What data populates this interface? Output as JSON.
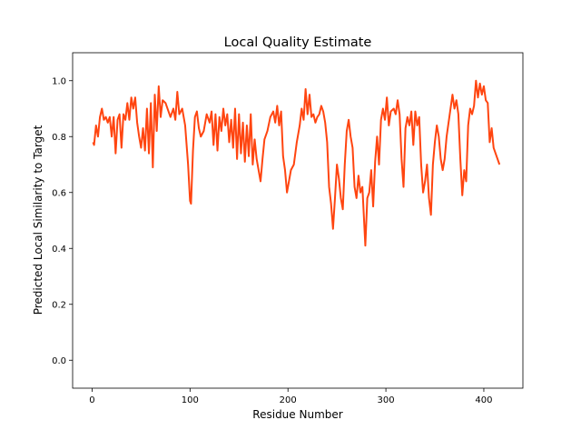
{
  "chart_data": {
    "type": "line",
    "title": "Local Quality Estimate",
    "x_label": "Residue Number",
    "y_label": "Predicted Local Similarity to Target",
    "x": [
      1,
      2,
      4,
      6,
      8,
      10,
      12,
      14,
      16,
      18,
      20,
      22,
      24,
      26,
      28,
      30,
      32,
      34,
      36,
      38,
      40,
      42,
      44,
      46,
      48,
      50,
      52,
      54,
      56,
      58,
      60,
      62,
      64,
      66,
      68,
      70,
      72,
      75,
      78,
      80,
      83,
      85,
      87,
      89,
      92,
      95,
      98,
      100,
      101,
      103,
      105,
      107,
      109,
      111,
      114,
      117,
      120,
      122,
      124,
      126,
      128,
      130,
      132,
      134,
      136,
      138,
      140,
      142,
      144,
      146,
      148,
      150,
      152,
      154,
      156,
      158,
      160,
      162,
      164,
      166,
      168,
      170,
      172,
      174,
      176,
      179,
      182,
      185,
      187,
      189,
      191,
      193,
      195,
      197,
      199,
      201,
      203,
      206,
      209,
      212,
      214,
      216,
      218,
      220,
      222,
      224,
      226,
      228,
      230,
      232,
      234,
      236,
      238,
      240,
      242,
      244,
      246,
      248,
      250,
      252,
      254,
      256,
      258,
      260,
      262,
      264,
      266,
      268,
      270,
      272,
      274,
      276,
      278,
      279,
      281,
      283,
      285,
      287,
      289,
      291,
      293,
      295,
      297,
      299,
      301,
      303,
      305,
      308,
      310,
      312,
      314,
      316,
      318,
      320,
      322,
      324,
      326,
      328,
      330,
      332,
      334,
      336,
      338,
      340,
      342,
      344,
      346,
      348,
      350,
      352,
      354,
      356,
      358,
      360,
      362,
      364,
      366,
      368,
      370,
      372,
      374,
      376,
      378,
      380,
      382,
      384,
      386,
      388,
      390,
      392,
      394,
      396,
      398,
      400,
      402,
      404,
      406,
      408,
      410,
      413,
      416
    ],
    "values": [
      0.78,
      0.77,
      0.84,
      0.8,
      0.87,
      0.9,
      0.86,
      0.87,
      0.85,
      0.87,
      0.8,
      0.87,
      0.74,
      0.86,
      0.88,
      0.76,
      0.88,
      0.86,
      0.92,
      0.86,
      0.94,
      0.9,
      0.94,
      0.85,
      0.8,
      0.76,
      0.83,
      0.75,
      0.9,
      0.74,
      0.92,
      0.69,
      0.95,
      0.82,
      0.98,
      0.87,
      0.93,
      0.92,
      0.89,
      0.87,
      0.9,
      0.86,
      0.96,
      0.88,
      0.9,
      0.84,
      0.7,
      0.57,
      0.56,
      0.75,
      0.87,
      0.89,
      0.83,
      0.8,
      0.82,
      0.88,
      0.85,
      0.89,
      0.77,
      0.88,
      0.75,
      0.87,
      0.82,
      0.9,
      0.84,
      0.88,
      0.78,
      0.86,
      0.76,
      0.9,
      0.72,
      0.88,
      0.74,
      0.85,
      0.71,
      0.84,
      0.73,
      0.88,
      0.7,
      0.79,
      0.72,
      0.68,
      0.64,
      0.72,
      0.79,
      0.82,
      0.87,
      0.89,
      0.85,
      0.91,
      0.84,
      0.89,
      0.73,
      0.68,
      0.6,
      0.64,
      0.68,
      0.7,
      0.78,
      0.84,
      0.9,
      0.86,
      0.97,
      0.88,
      0.95,
      0.87,
      0.88,
      0.85,
      0.87,
      0.88,
      0.91,
      0.89,
      0.85,
      0.78,
      0.62,
      0.56,
      0.47,
      0.58,
      0.7,
      0.65,
      0.58,
      0.54,
      0.7,
      0.82,
      0.86,
      0.8,
      0.76,
      0.62,
      0.58,
      0.66,
      0.6,
      0.62,
      0.48,
      0.41,
      0.58,
      0.6,
      0.68,
      0.55,
      0.71,
      0.8,
      0.7,
      0.86,
      0.9,
      0.86,
      0.94,
      0.84,
      0.89,
      0.9,
      0.88,
      0.93,
      0.88,
      0.72,
      0.62,
      0.83,
      0.87,
      0.84,
      0.89,
      0.77,
      0.89,
      0.84,
      0.87,
      0.7,
      0.6,
      0.64,
      0.7,
      0.58,
      0.52,
      0.7,
      0.78,
      0.84,
      0.8,
      0.72,
      0.68,
      0.72,
      0.8,
      0.85,
      0.9,
      0.95,
      0.9,
      0.93,
      0.88,
      0.72,
      0.59,
      0.68,
      0.64,
      0.84,
      0.9,
      0.88,
      0.91,
      1.0,
      0.94,
      0.99,
      0.95,
      0.98,
      0.93,
      0.92,
      0.78,
      0.83,
      0.76,
      0.73,
      0.7
    ],
    "color": "#ff4510",
    "xlim": [
      -19.9,
      439.9
    ],
    "xticks": [
      0,
      100,
      200,
      300,
      400
    ],
    "ylim": [
      -0.1,
      1.1
    ],
    "yticks": [
      {
        "value": 0,
        "label": "0.0"
      },
      0.2,
      0.4,
      0.6,
      0.8,
      {
        "value": 1,
        "label": "1.0"
      }
    ],
    "grid": false
  }
}
